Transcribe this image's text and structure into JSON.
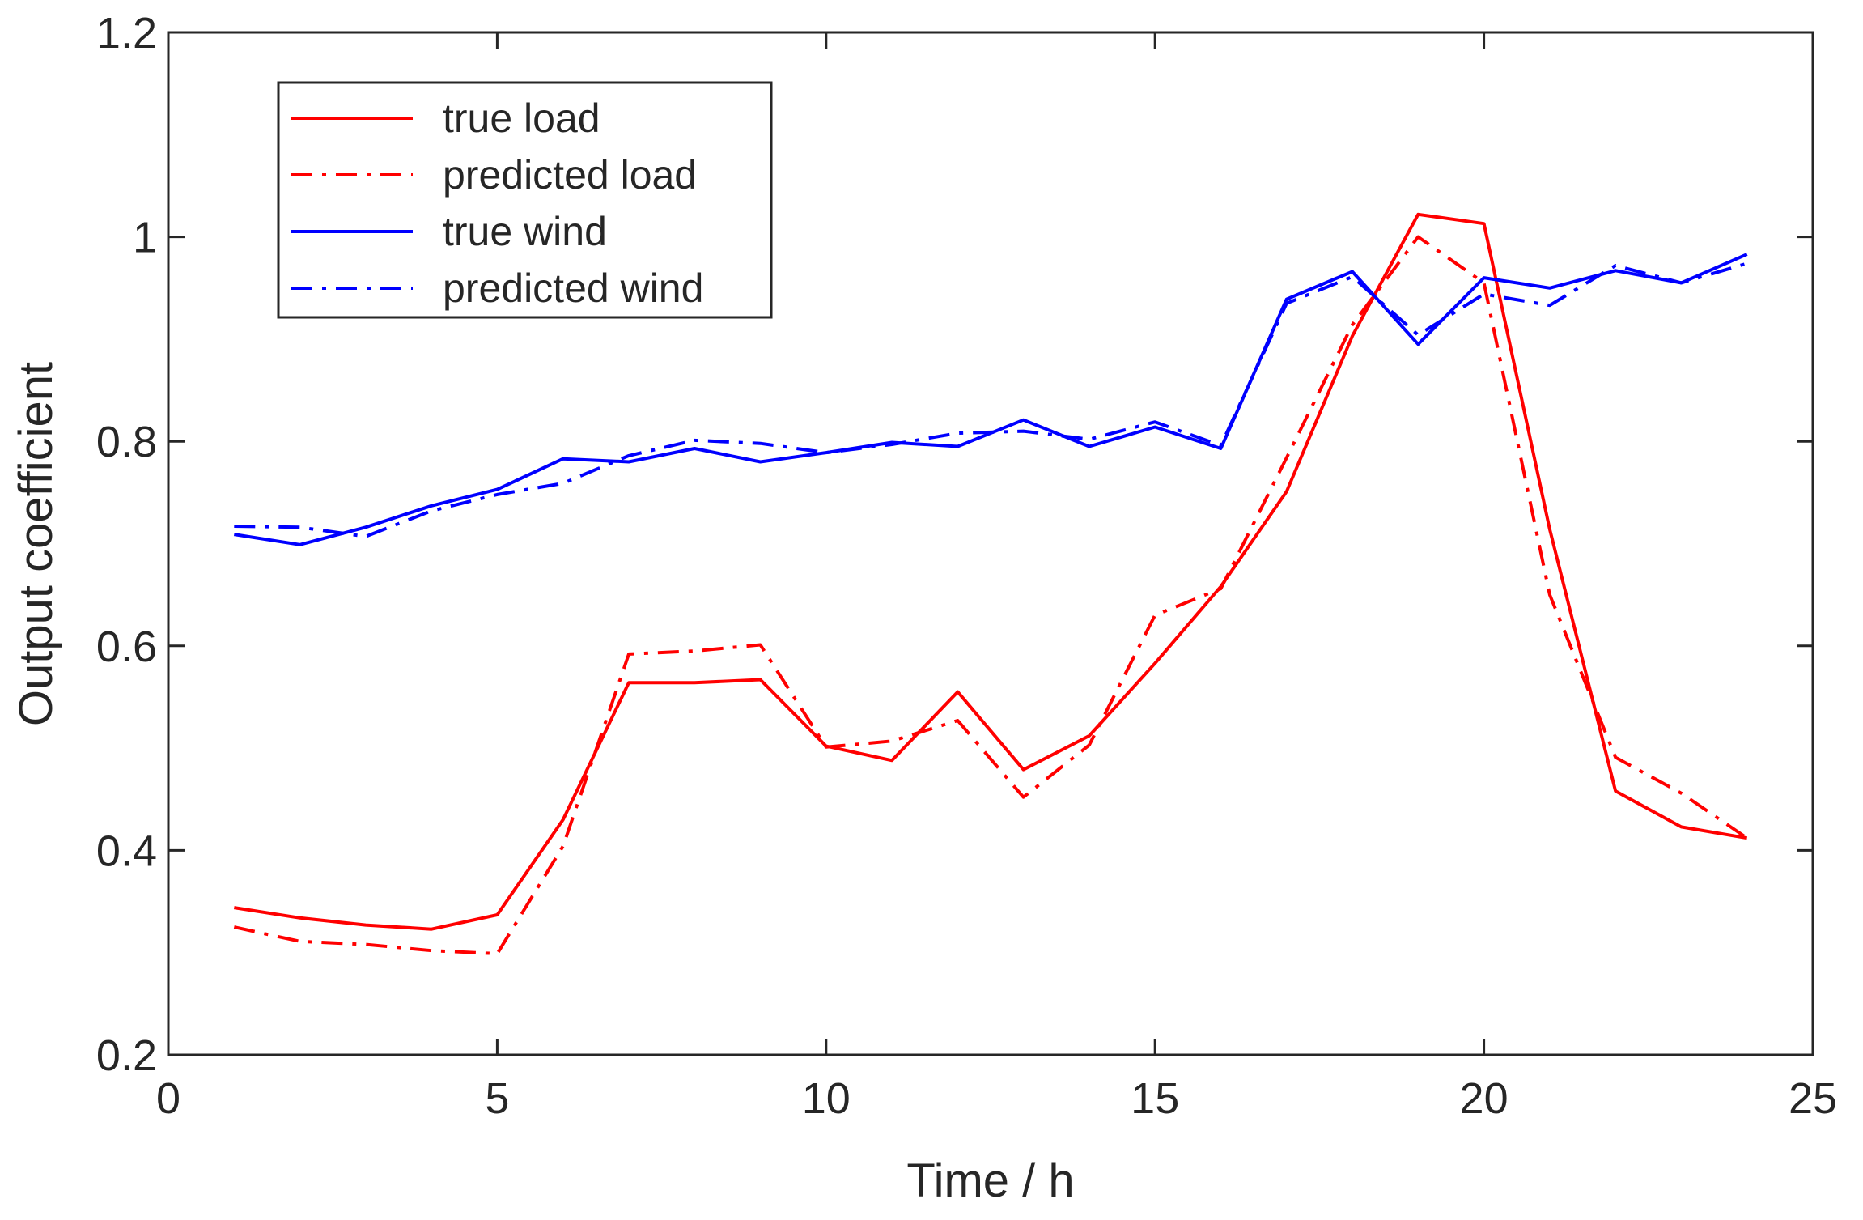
{
  "chart_data": {
    "type": "line",
    "title": "",
    "xlabel": "Time / h",
    "ylabel": "Output coefficient",
    "xlim": [
      0,
      25
    ],
    "ylim": [
      0.2,
      1.2
    ],
    "xticks": [
      0,
      5,
      10,
      15,
      20,
      25
    ],
    "yticks": [
      0.2,
      0.4,
      0.6,
      0.8,
      1,
      1.2
    ],
    "xtick_labels": [
      "0",
      "5",
      "10",
      "15",
      "20",
      "25"
    ],
    "ytick_labels": [
      "0.2",
      "0.4",
      "0.6",
      "0.8",
      "1",
      "1.2"
    ],
    "grid": false,
    "legend_position": "top-left",
    "x": [
      1,
      2,
      3,
      4,
      5,
      6,
      7,
      8,
      9,
      10,
      11,
      12,
      13,
      14,
      15,
      16,
      17,
      18,
      19,
      20,
      21,
      22,
      23,
      24
    ],
    "series": [
      {
        "name": "true load",
        "color": "#ff0000",
        "linestyle": "solid",
        "values": [
          0.344,
          0.334,
          0.327,
          0.323,
          0.337,
          0.43,
          0.564,
          0.564,
          0.567,
          0.502,
          0.488,
          0.555,
          0.479,
          0.512,
          0.583,
          0.658,
          0.751,
          0.903,
          1.022,
          1.013,
          0.714,
          0.458,
          0.423,
          0.412
        ]
      },
      {
        "name": "predicted load",
        "color": "#ff0000",
        "linestyle": "dashdot",
        "values": [
          0.325,
          0.311,
          0.308,
          0.302,
          0.299,
          0.404,
          0.592,
          0.595,
          0.601,
          0.501,
          0.507,
          0.527,
          0.452,
          0.503,
          0.63,
          0.656,
          0.784,
          0.914,
          1.0,
          0.955,
          0.65,
          0.491,
          0.456,
          0.412
        ]
      },
      {
        "name": "true wind",
        "color": "#0000ff",
        "linestyle": "solid",
        "values": [
          0.709,
          0.699,
          0.716,
          0.737,
          0.753,
          0.783,
          0.78,
          0.793,
          0.78,
          0.789,
          0.799,
          0.795,
          0.821,
          0.795,
          0.814,
          0.793,
          0.939,
          0.966,
          0.895,
          0.96,
          0.95,
          0.967,
          0.955,
          0.983
        ]
      },
      {
        "name": "predicted wind",
        "color": "#0000ff",
        "linestyle": "dashdot",
        "values": [
          0.717,
          0.716,
          0.707,
          0.732,
          0.748,
          0.759,
          0.786,
          0.801,
          0.798,
          0.789,
          0.797,
          0.808,
          0.81,
          0.802,
          0.819,
          0.796,
          0.935,
          0.961,
          0.904,
          0.944,
          0.933,
          0.972,
          0.955,
          0.974
        ]
      }
    ]
  }
}
